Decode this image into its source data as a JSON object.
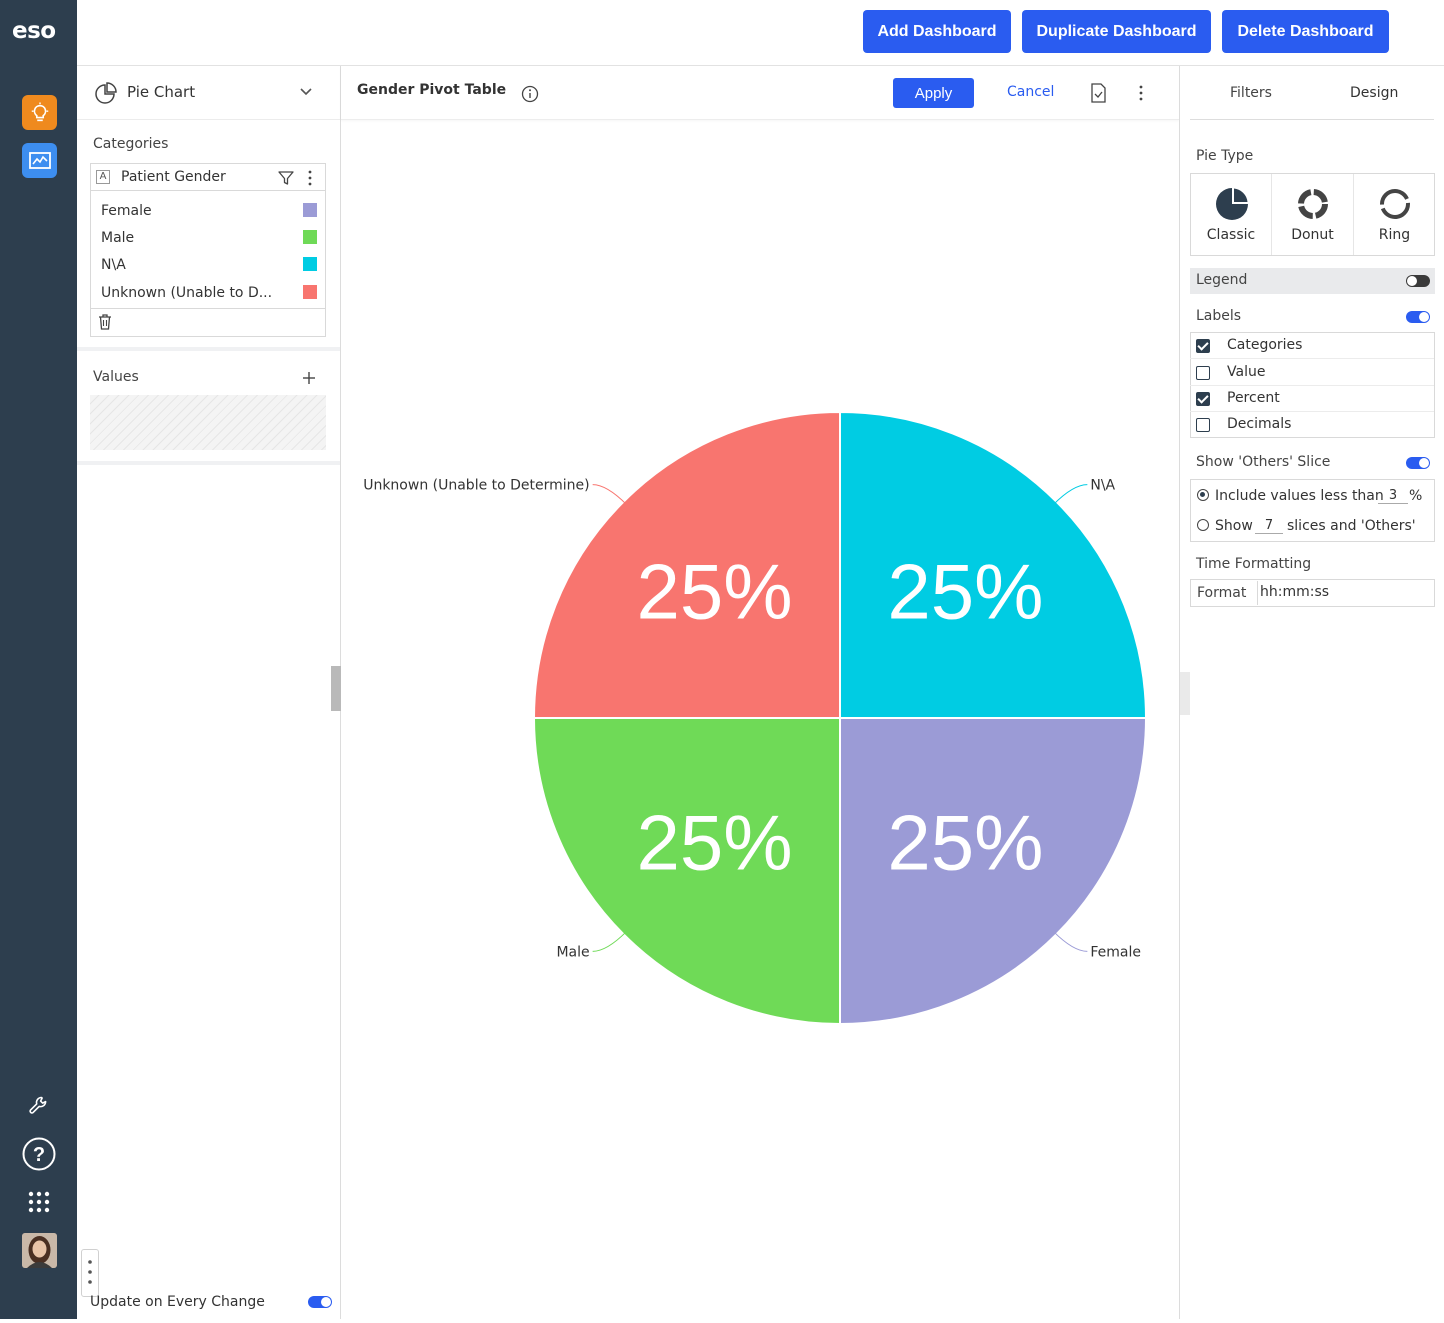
{
  "rail": {
    "logo": "eso",
    "apps": [
      {
        "icon": "lightbulb-icon",
        "color": "#ef8a1e"
      },
      {
        "icon": "chart-monitor-icon",
        "color": "#3d8ef0"
      }
    ],
    "bottom_icons": [
      "wrench-icon",
      "help-icon",
      "apps-grid-icon"
    ]
  },
  "topbar": {
    "add_dashboard": "Add Dashboard",
    "duplicate_dashboard": "Duplicate Dashboard",
    "delete_dashboard": "Delete Dashboard"
  },
  "left_panel": {
    "chart_type": "Pie Chart",
    "categories_label": "Categories",
    "field_type_badge": "A",
    "field_name": "Patient Gender",
    "category_items": [
      {
        "label": "Female",
        "color": "#9b9bd6"
      },
      {
        "label": "Male",
        "color": "#6fda57"
      },
      {
        "label": "N\\A",
        "color": "#00cce3"
      },
      {
        "label": "Unknown (Unable to D...",
        "color": "#f8756f"
      }
    ],
    "values_label": "Values",
    "update_label": "Update on Every Change",
    "update_on": true
  },
  "center": {
    "widget_title": "Gender Pivot Table",
    "apply": "Apply",
    "cancel": "Cancel"
  },
  "right_panel": {
    "tabs": [
      "Filters",
      "Design"
    ],
    "pie_type_label": "Pie Type",
    "pie_types": [
      "Classic",
      "Donut",
      "Ring"
    ],
    "legend_label": "Legend",
    "legend_on": false,
    "labels_label": "Labels",
    "labels_on": true,
    "label_options": [
      {
        "label": "Categories",
        "checked": true
      },
      {
        "label": "Value",
        "checked": false
      },
      {
        "label": "Percent",
        "checked": true
      },
      {
        "label": "Decimals",
        "checked": false
      }
    ],
    "others_label": "Show 'Others' Slice",
    "others_on": true,
    "include_prefix": "Include values less than",
    "include_value": "3",
    "include_suffix": "%",
    "show_prefix": "Show",
    "show_value": "7",
    "show_suffix": "slices and 'Others'",
    "time_formatting_label": "Time Formatting",
    "format_label": "Format",
    "format_value": "hh:mm:ss"
  },
  "colors": {
    "accent": "#2a5cf0",
    "rail": "#2d3e4e"
  },
  "chart_data": {
    "type": "pie",
    "slices": [
      {
        "label": "N\\A",
        "value": 25,
        "percent_label": "25%",
        "color": "#00cce3"
      },
      {
        "label": "Female",
        "value": 25,
        "percent_label": "25%",
        "color": "#9b9bd6"
      },
      {
        "label": "Male",
        "value": 25,
        "percent_label": "25%",
        "color": "#6fda57"
      },
      {
        "label": "Unknown (Unable to Determine)",
        "value": 25,
        "percent_label": "25%",
        "color": "#f8756f"
      }
    ],
    "legend": false
  }
}
